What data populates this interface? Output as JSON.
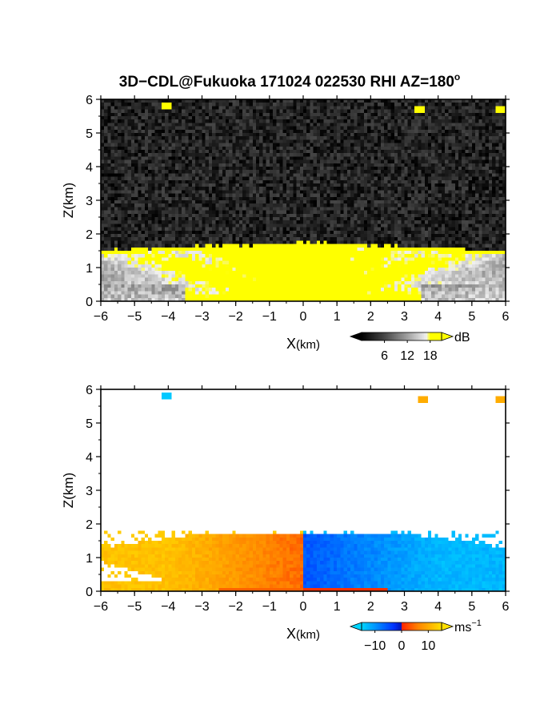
{
  "title": {
    "main": "3D−CDL@Fukuoka 171024 022530 RHI AZ=180",
    "sup": "o"
  },
  "colors": {
    "background": "#ffffff",
    "reflectivity_fill": "#2a2a2a",
    "reflectivity_saturated": "#ffff00",
    "velocity_negative": "#0033ff",
    "velocity_near_zero": "#00d5ff",
    "velocity_positive": "#ff2200",
    "velocity_max": "#ffe000"
  },
  "chart_data": [
    {
      "type": "heatmap",
      "variable": "reflectivity",
      "xlabel": {
        "main": "X",
        "unit": "(km)"
      },
      "ylabel": "Z(km)",
      "xlim": [
        -6,
        6
      ],
      "ylim": [
        0,
        6
      ],
      "xticks": [
        "-6",
        "-5",
        "-4",
        "-3",
        "-2",
        "-1",
        "0",
        "1",
        "2",
        "3",
        "4",
        "5",
        "6"
      ],
      "yticks": [
        "0",
        "1",
        "2",
        "3",
        "4",
        "5",
        "6"
      ],
      "colorbar": {
        "unit": "dB",
        "ticks": [
          "6",
          "12",
          "18"
        ],
        "range": [
          0,
          21
        ]
      },
      "layer_top_km": 1.7,
      "layer_top_center_km": 1.75,
      "layer_top_edge_km": 1.5,
      "background_noise_dB": 3,
      "saturation_dB": 18,
      "targets": [
        {
          "x": -4.1,
          "z": 5.85
        },
        {
          "x": 3.4,
          "z": 5.75
        },
        {
          "x": 5.8,
          "z": 5.7
        }
      ]
    },
    {
      "type": "heatmap",
      "variable": "radial velocity",
      "xlabel": {
        "main": "X",
        "unit": "(km)"
      },
      "ylabel": "Z(km)",
      "xlim": [
        -6,
        6
      ],
      "ylim": [
        0,
        6
      ],
      "xticks": [
        "-6",
        "-5",
        "-4",
        "-3",
        "-2",
        "-1",
        "0",
        "1",
        "2",
        "3",
        "4",
        "5",
        "6"
      ],
      "yticks": [
        "0",
        "1",
        "2",
        "3",
        "4",
        "5",
        "6"
      ],
      "colorbar": {
        "unit": "ms",
        "unit_sup": "−1",
        "ticks": [
          "−10",
          "0",
          "10"
        ],
        "range": [
          -15,
          15
        ]
      },
      "layer_top_km": 1.7,
      "velocity_left_mps": 12,
      "velocity_right_mps": -9,
      "targets": [
        {
          "x": -4.1,
          "z": 5.85,
          "v": -14
        },
        {
          "x": 3.5,
          "z": 5.75,
          "v": 10
        },
        {
          "x": 5.8,
          "z": 5.75,
          "v": 10
        }
      ]
    }
  ]
}
